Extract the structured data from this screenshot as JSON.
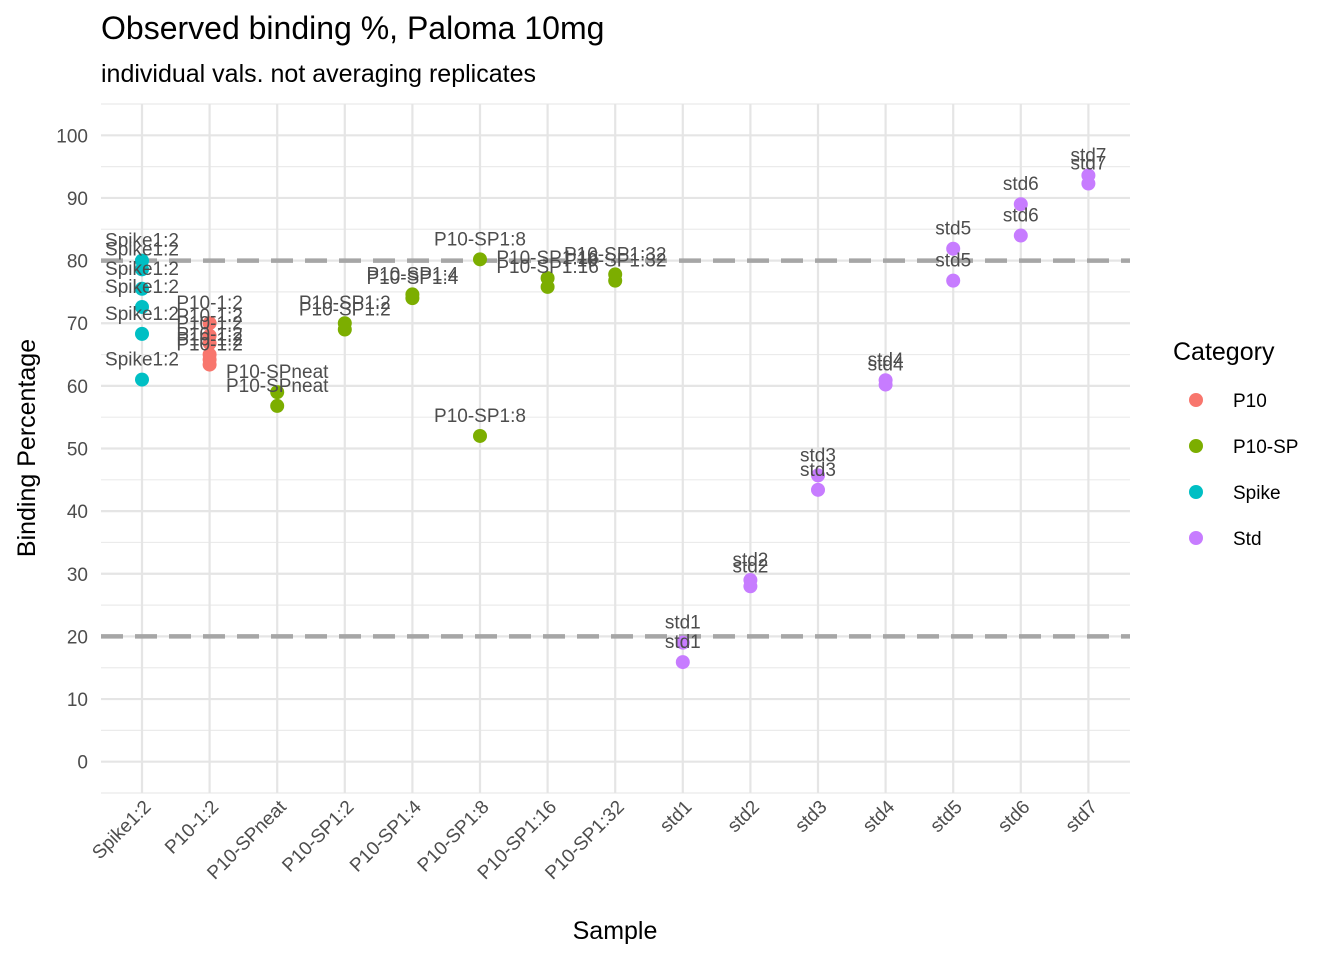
{
  "chart_data": {
    "type": "scatter",
    "title": "Observed binding %, Paloma 10mg",
    "subtitle": "individual vals. not averaging replicates",
    "xlabel": "Sample",
    "ylabel": "Binding Percentage",
    "ylim": [
      -5,
      105
    ],
    "yticks": [
      0,
      10,
      20,
      30,
      40,
      50,
      60,
      70,
      80,
      90,
      100
    ],
    "categories": [
      "Spike1:2",
      "P10-1:2",
      "P10-SPneat",
      "P10-SP1:2",
      "P10-SP1:4",
      "P10-SP1:8",
      "P10-SP1:16",
      "P10-SP1:32",
      "std1",
      "std2",
      "std3",
      "std4",
      "std5",
      "std6",
      "std7"
    ],
    "grid": true,
    "reference_lines": [
      80,
      20
    ],
    "reference_line_color": "#a6a6a6",
    "legend": {
      "title": "Category",
      "position": "right",
      "entries": [
        {
          "name": "P10",
          "color": "#F8766D"
        },
        {
          "name": "P10-SP",
          "color": "#7CAE00"
        },
        {
          "name": "Spike",
          "color": "#00BFC4"
        },
        {
          "name": "Std",
          "color": "#C77CFF"
        }
      ]
    },
    "series": [
      {
        "name": "Spike",
        "points": [
          {
            "x": "Spike1:2",
            "y": 80.0,
            "label": "Spike1:2"
          },
          {
            "x": "Spike1:2",
            "y": 78.6,
            "label": "Spike1:2"
          },
          {
            "x": "Spike1:2",
            "y": 75.5,
            "label": "Spike1:2"
          },
          {
            "x": "Spike1:2",
            "y": 72.6,
            "label": "Spike1:2"
          },
          {
            "x": "Spike1:2",
            "y": 68.3,
            "label": "Spike1:2"
          },
          {
            "x": "Spike1:2",
            "y": 61.0,
            "label": "Spike1:2"
          }
        ]
      },
      {
        "name": "P10",
        "points": [
          {
            "x": "P10-1:2",
            "y": 70.0,
            "label": "P10-1:2"
          },
          {
            "x": "P10-1:2",
            "y": 68.0,
            "label": "P10-1:2"
          },
          {
            "x": "P10-1:2",
            "y": 66.8,
            "label": "P10-1:2"
          },
          {
            "x": "P10-1:2",
            "y": 65.0,
            "label": "P10-1:2"
          },
          {
            "x": "P10-1:2",
            "y": 64.2,
            "label": "P10-1:2"
          },
          {
            "x": "P10-1:2",
            "y": 63.4,
            "label": "P10-1:2"
          }
        ]
      },
      {
        "name": "P10-SP",
        "points": [
          {
            "x": "P10-SPneat",
            "y": 59.0,
            "label": "P10-SPneat"
          },
          {
            "x": "P10-SPneat",
            "y": 56.8,
            "label": "P10-SPneat"
          },
          {
            "x": "P10-SP1:2",
            "y": 70.0,
            "label": "P10-SP1:2"
          },
          {
            "x": "P10-SP1:2",
            "y": 69.0,
            "label": "P10-SP1:2"
          },
          {
            "x": "P10-SP1:4",
            "y": 74.6,
            "label": "P10-SP1:4"
          },
          {
            "x": "P10-SP1:4",
            "y": 74.0,
            "label": "P10-SP1:4"
          },
          {
            "x": "P10-SP1:8",
            "y": 80.2,
            "label": "P10-SP1:8"
          },
          {
            "x": "P10-SP1:8",
            "y": 52.0,
            "label": "P10-SP1:8"
          },
          {
            "x": "P10-SP1:16",
            "y": 77.2,
            "label": "P10-SP1:16"
          },
          {
            "x": "P10-SP1:16",
            "y": 75.8,
            "label": "P10-SP1:16"
          },
          {
            "x": "P10-SP1:32",
            "y": 77.8,
            "label": "P10-SP1:32"
          },
          {
            "x": "P10-SP1:32",
            "y": 76.8,
            "label": "P10-SP1:32"
          }
        ]
      },
      {
        "name": "Std",
        "points": [
          {
            "x": "std1",
            "y": 19.0,
            "label": "std1"
          },
          {
            "x": "std1",
            "y": 15.9,
            "label": "std1"
          },
          {
            "x": "std2",
            "y": 29.0,
            "label": "std2"
          },
          {
            "x": "std2",
            "y": 28.0,
            "label": "std2"
          },
          {
            "x": "std3",
            "y": 45.7,
            "label": "std3"
          },
          {
            "x": "std3",
            "y": 43.4,
            "label": "std3"
          },
          {
            "x": "std4",
            "y": 60.9,
            "label": "std4"
          },
          {
            "x": "std4",
            "y": 60.2,
            "label": "std4"
          },
          {
            "x": "std5",
            "y": 81.9,
            "label": "std5"
          },
          {
            "x": "std5",
            "y": 76.8,
            "label": "std5"
          },
          {
            "x": "std6",
            "y": 89.0,
            "label": "std6"
          },
          {
            "x": "std6",
            "y": 84.0,
            "label": "std6"
          },
          {
            "x": "std7",
            "y": 93.6,
            "label": "std7"
          },
          {
            "x": "std7",
            "y": 92.3,
            "label": "std7"
          }
        ]
      }
    ]
  }
}
